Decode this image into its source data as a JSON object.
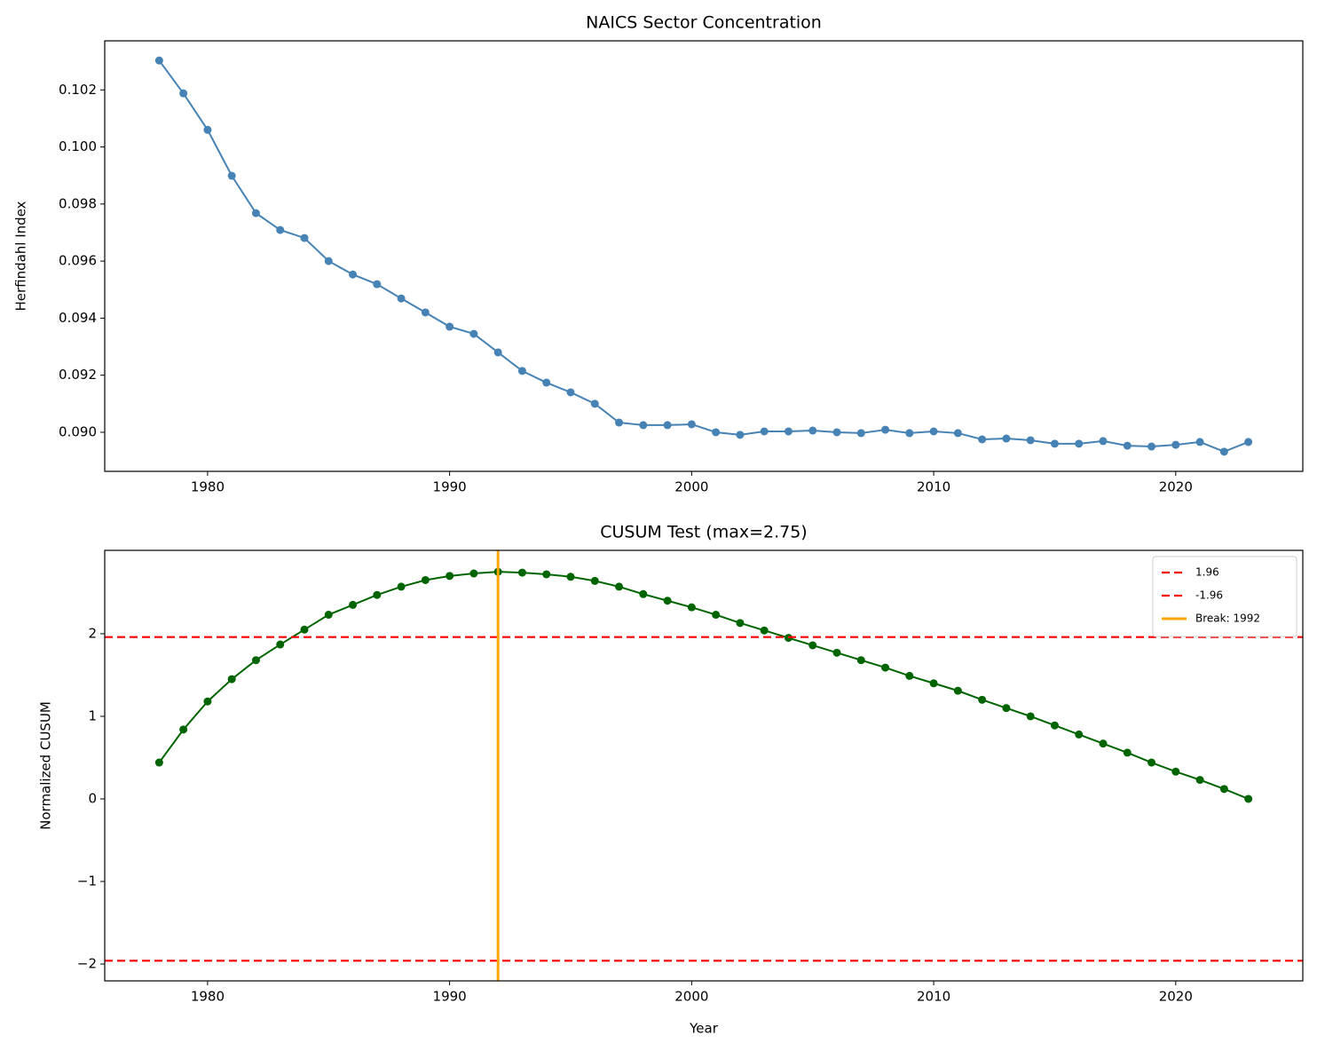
{
  "chart_data": [
    {
      "type": "line",
      "title": "NAICS Sector Concentration",
      "ylabel": "Herfindahl Index",
      "color": "#4682b4",
      "marker": true,
      "x": [
        1978,
        1979,
        1980,
        1981,
        1982,
        1983,
        1984,
        1985,
        1986,
        1987,
        1988,
        1989,
        1990,
        1991,
        1992,
        1993,
        1994,
        1995,
        1996,
        1997,
        1998,
        1999,
        2000,
        2001,
        2002,
        2003,
        2004,
        2005,
        2006,
        2007,
        2008,
        2009,
        2010,
        2011,
        2012,
        2013,
        2014,
        2015,
        2016,
        2017,
        2018,
        2019,
        2020,
        2021,
        2022,
        2023
      ],
      "values": [
        0.10303,
        0.10188,
        0.1006,
        0.09899,
        0.09768,
        0.09709,
        0.09681,
        0.096,
        0.09553,
        0.09519,
        0.09469,
        0.0942,
        0.0937,
        0.09345,
        0.0928,
        0.09215,
        0.09174,
        0.0914,
        0.091,
        0.09034,
        0.09025,
        0.09025,
        0.09028,
        0.09,
        0.08991,
        0.09003,
        0.09003,
        0.09006,
        0.09,
        0.08997,
        0.09009,
        0.08997,
        0.09003,
        0.08997,
        0.08975,
        0.08978,
        0.08972,
        0.0896,
        0.0896,
        0.08969,
        0.08953,
        0.0895,
        0.08956,
        0.08966,
        0.08932,
        0.08966
      ],
      "xlim": [
        1975.75,
        2025.25
      ],
      "ylim": [
        0.08863,
        0.10372
      ],
      "xticks": [
        1980,
        1990,
        2000,
        2010,
        2020
      ],
      "yticks": [
        {
          "value": 0.09,
          "label": "0.090"
        },
        0.092,
        0.094,
        0.096,
        0.098,
        {
          "value": 0.1,
          "label": "0.100"
        },
        0.102
      ]
    },
    {
      "type": "line",
      "title": "CUSUM Test (max=2.75)",
      "xlabel": "Year",
      "ylabel": "Normalized CUSUM",
      "color": "#006400",
      "marker": true,
      "x": [
        1978,
        1979,
        1980,
        1981,
        1982,
        1983,
        1984,
        1985,
        1986,
        1987,
        1988,
        1989,
        1990,
        1991,
        1992,
        1993,
        1994,
        1995,
        1996,
        1997,
        1998,
        1999,
        2000,
        2001,
        2002,
        2003,
        2004,
        2005,
        2006,
        2007,
        2008,
        2009,
        2010,
        2011,
        2012,
        2013,
        2014,
        2015,
        2016,
        2017,
        2018,
        2019,
        2020,
        2021,
        2022,
        2023
      ],
      "values": [
        0.44,
        0.84,
        1.18,
        1.45,
        1.68,
        1.87,
        2.05,
        2.23,
        2.35,
        2.47,
        2.57,
        2.65,
        2.7,
        2.73,
        2.75,
        2.74,
        2.72,
        2.69,
        2.64,
        2.57,
        2.48,
        2.4,
        2.32,
        2.23,
        2.13,
        2.04,
        1.95,
        1.86,
        1.77,
        1.68,
        1.59,
        1.49,
        1.4,
        1.31,
        1.2,
        1.1,
        1.0,
        0.89,
        0.78,
        0.67,
        0.56,
        0.44,
        0.33,
        0.23,
        0.12,
        0
      ],
      "xlim": [
        1975.75,
        2025.25
      ],
      "ylim": [
        -2.204,
        3.01
      ],
      "xticks": [
        1980,
        1990,
        2000,
        2010,
        2020
      ],
      "yticks": [
        {
          "value": -2,
          "label": "−2"
        },
        {
          "value": -1,
          "label": "−1"
        },
        0,
        1,
        2
      ],
      "hlines": [
        {
          "name": "1.96",
          "value": 1.96,
          "color": "#ff0000"
        },
        {
          "name": "-1.96",
          "value": -1.96,
          "color": "#ff0000"
        }
      ],
      "vlines": [
        {
          "name": "Break: 1992",
          "x": 1992,
          "color": "#ffa500"
        }
      ],
      "legend": "upper right"
    }
  ]
}
